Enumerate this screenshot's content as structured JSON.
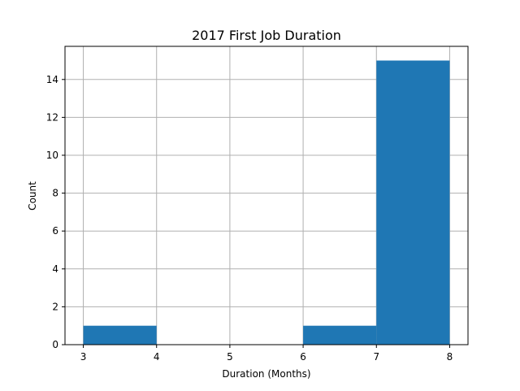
{
  "chart_data": {
    "type": "bar",
    "title": "2017 First Job Duration",
    "xlabel": "Duration (Months)",
    "ylabel": "Count",
    "bins": [
      {
        "start": 3,
        "end": 4,
        "count": 1
      },
      {
        "start": 4,
        "end": 5,
        "count": 0
      },
      {
        "start": 5,
        "end": 6,
        "count": 0
      },
      {
        "start": 6,
        "end": 7,
        "count": 1
      },
      {
        "start": 7,
        "end": 8,
        "count": 15
      }
    ],
    "xlim": [
      2.75,
      8.25
    ],
    "ylim": [
      0,
      15.75
    ],
    "x_ticks": [
      3,
      4,
      5,
      6,
      7,
      8
    ],
    "y_ticks": [
      0,
      2,
      4,
      6,
      8,
      10,
      12,
      14
    ],
    "grid": true,
    "bar_color": "#1f77b4",
    "grid_color": "#b0b0b0"
  }
}
